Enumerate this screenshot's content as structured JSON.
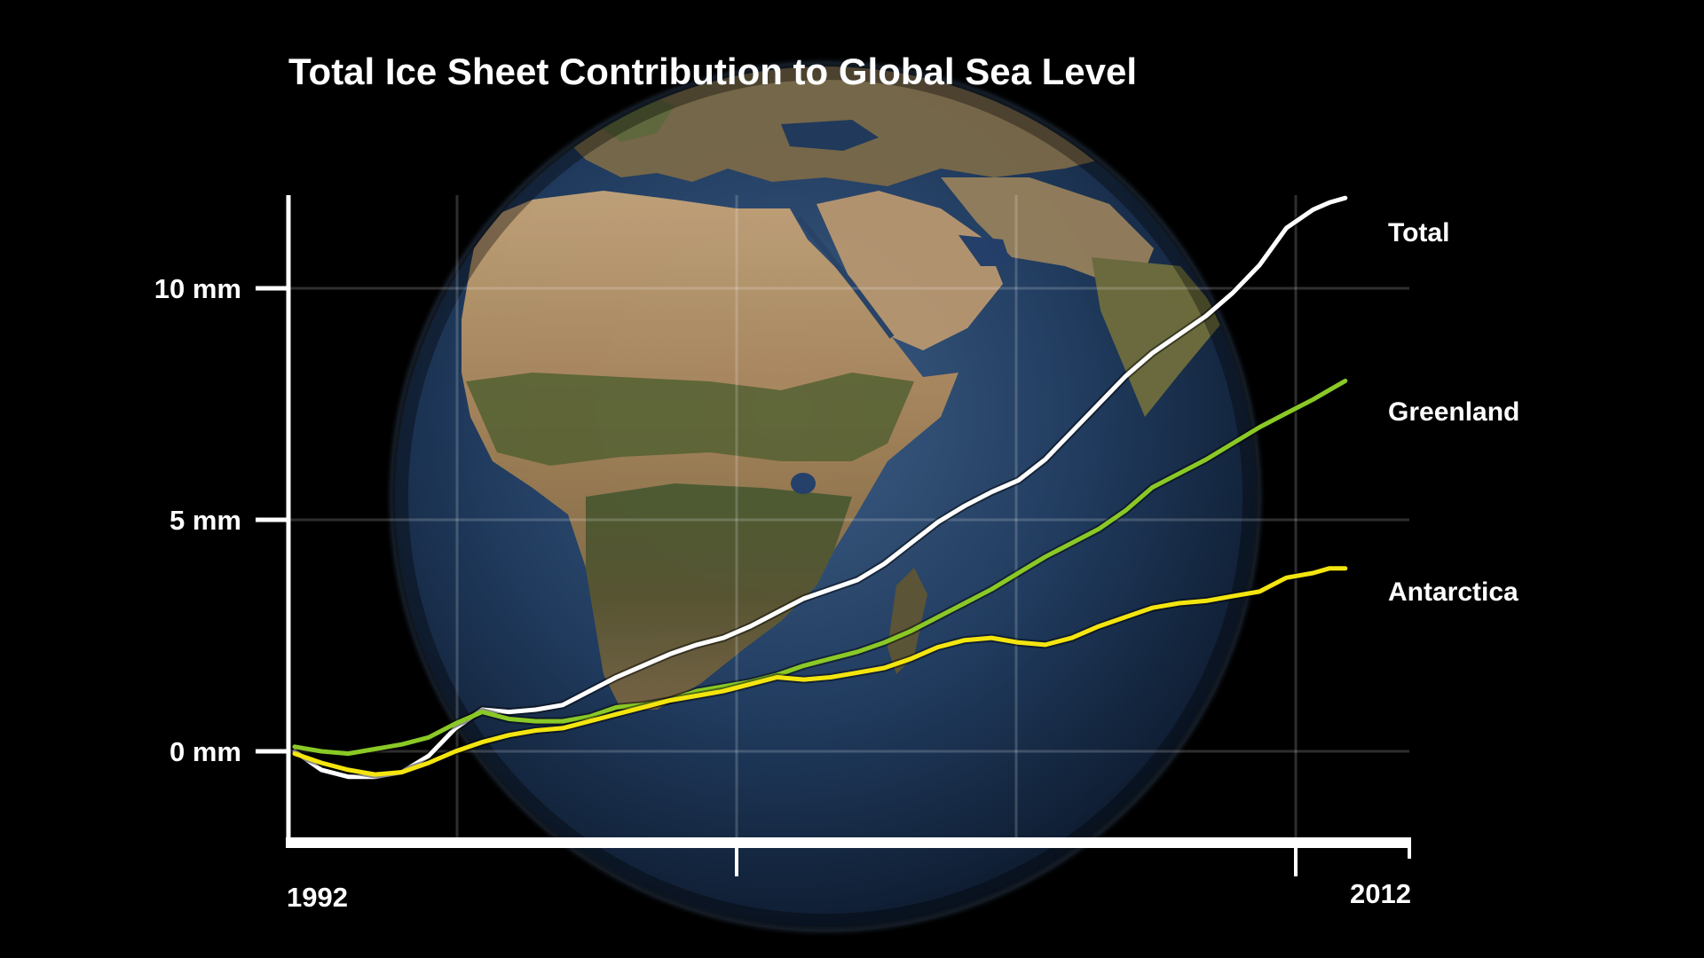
{
  "chart_data": {
    "type": "line",
    "title": "Total Ice Sheet Contribution to Global Sea Level",
    "xlabel": "",
    "ylabel": "",
    "xlim": [
      1992,
      2012
    ],
    "ylim": [
      -2,
      12
    ],
    "x_ticks": [
      {
        "value": 1992,
        "label": "1992"
      },
      {
        "value": 2012,
        "label": "2012"
      }
    ],
    "y_ticks": [
      {
        "value": 0,
        "label": "0 mm"
      },
      {
        "value": 5,
        "label": "5 mm"
      },
      {
        "value": 10,
        "label": "10 mm"
      }
    ],
    "grid": true,
    "background": "globe of Earth (Africa, Europe, Arabia, India)",
    "series": [
      {
        "name": "Total",
        "color": "#ffffff",
        "x": [
          1992.0,
          1992.5,
          1993.0,
          1993.5,
          1994.0,
          1994.5,
          1995.0,
          1995.5,
          1996.0,
          1996.5,
          1997.0,
          1997.5,
          1998.0,
          1998.5,
          1999.0,
          1999.5,
          2000.0,
          2000.5,
          2001.0,
          2001.5,
          2002.0,
          2002.5,
          2003.0,
          2003.5,
          2004.0,
          2004.5,
          2005.0,
          2005.5,
          2006.0,
          2006.5,
          2007.0,
          2007.5,
          2008.0,
          2008.5,
          2009.0,
          2009.5,
          2010.0,
          2010.5,
          2011.0,
          2011.3,
          2011.6
        ],
        "values": [
          0.0,
          -0.4,
          -0.55,
          -0.55,
          -0.45,
          -0.1,
          0.5,
          0.9,
          0.85,
          0.9,
          1.0,
          1.3,
          1.6,
          1.85,
          2.1,
          2.3,
          2.45,
          2.7,
          3.0,
          3.3,
          3.5,
          3.7,
          4.05,
          4.5,
          4.95,
          5.3,
          5.6,
          5.85,
          6.3,
          6.9,
          7.5,
          8.1,
          8.6,
          9.0,
          9.4,
          9.9,
          10.5,
          11.3,
          11.7,
          11.85,
          11.95
        ]
      },
      {
        "name": "Greenland",
        "color": "#8ac926",
        "x": [
          1992.0,
          1992.5,
          1993.0,
          1993.5,
          1994.0,
          1994.5,
          1995.0,
          1995.5,
          1996.0,
          1996.5,
          1997.0,
          1997.5,
          1998.0,
          1998.5,
          1999.0,
          1999.5,
          2000.0,
          2000.5,
          2001.0,
          2001.5,
          2002.0,
          2002.5,
          2003.0,
          2003.5,
          2004.0,
          2004.5,
          2005.0,
          2005.5,
          2006.0,
          2006.5,
          2007.0,
          2007.5,
          2008.0,
          2008.5,
          2009.0,
          2009.5,
          2010.0,
          2010.5,
          2011.0,
          2011.3,
          2011.6
        ],
        "values": [
          0.1,
          0.0,
          -0.05,
          0.05,
          0.15,
          0.3,
          0.6,
          0.85,
          0.7,
          0.65,
          0.65,
          0.75,
          0.95,
          1.0,
          1.1,
          1.3,
          1.4,
          1.5,
          1.65,
          1.85,
          2.0,
          2.15,
          2.35,
          2.6,
          2.9,
          3.2,
          3.5,
          3.85,
          4.2,
          4.5,
          4.8,
          5.2,
          5.7,
          6.0,
          6.3,
          6.65,
          7.0,
          7.3,
          7.6,
          7.8,
          8.0
        ]
      },
      {
        "name": "Antarctica",
        "color": "#f5e50f",
        "x": [
          1992.0,
          1992.5,
          1993.0,
          1993.5,
          1994.0,
          1994.5,
          1995.0,
          1995.5,
          1996.0,
          1996.5,
          1997.0,
          1997.5,
          1998.0,
          1998.5,
          1999.0,
          1999.5,
          2000.0,
          2000.5,
          2001.0,
          2001.5,
          2002.0,
          2002.5,
          2003.0,
          2003.5,
          2004.0,
          2004.5,
          2005.0,
          2005.5,
          2006.0,
          2006.5,
          2007.0,
          2007.5,
          2008.0,
          2008.5,
          2009.0,
          2009.5,
          2010.0,
          2010.5,
          2011.0,
          2011.3,
          2011.6
        ],
        "values": [
          -0.05,
          -0.25,
          -0.4,
          -0.5,
          -0.45,
          -0.25,
          0.0,
          0.2,
          0.35,
          0.45,
          0.5,
          0.65,
          0.8,
          0.95,
          1.1,
          1.2,
          1.3,
          1.45,
          1.6,
          1.55,
          1.6,
          1.7,
          1.8,
          2.0,
          2.25,
          2.4,
          2.45,
          2.35,
          2.3,
          2.45,
          2.7,
          2.9,
          3.1,
          3.2,
          3.25,
          3.35,
          3.45,
          3.75,
          3.85,
          3.95,
          3.95
        ]
      }
    ]
  }
}
